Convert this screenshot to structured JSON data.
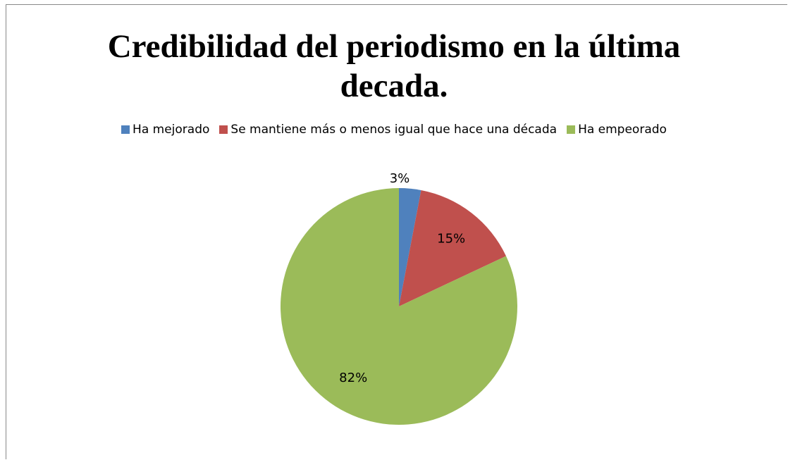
{
  "chart_data": {
    "type": "pie",
    "title": "Credibilidad del periodismo en la última decada.",
    "categories": [
      "Ha mejorado",
      "Se mantiene más o menos igual que hace una década",
      "Ha empeorado"
    ],
    "values": [
      3,
      15,
      82
    ],
    "value_labels": [
      "3%",
      "15%",
      "82%"
    ],
    "colors": [
      "#4f81bd",
      "#c0504d",
      "#9bbb59"
    ],
    "legend": "top"
  }
}
